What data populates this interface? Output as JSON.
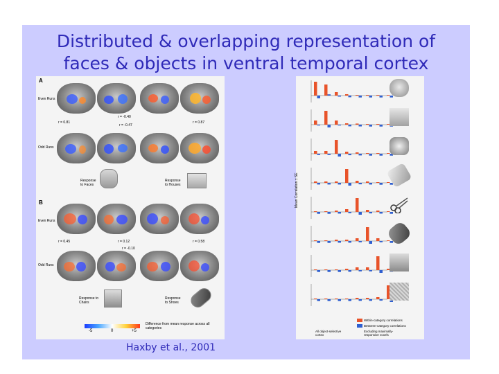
{
  "slide": {
    "title_line1": "Distributed & overlapping representation of",
    "title_line2": "faces & objects in ventral temporal cortex",
    "citation": "Haxby et al., 2001",
    "background_color": "#ccccff",
    "title_color": "#2f2ab8"
  },
  "left_figure": {
    "panel_a": "A",
    "panel_b": "B",
    "even_runs": "Even Runs",
    "odd_runs": "Odd Runs",
    "panel_a_r": {
      "left": "r = 0.81",
      "cross1": "r = -0.40",
      "cross2": "r = -0.47",
      "right": "r = 0.87"
    },
    "panel_b_r": {
      "left": "r = 0.45",
      "cross1": "r = 0.12",
      "cross2": "r = -0.10",
      "right": "r = 0.58"
    },
    "response_faces": "Response to Faces",
    "response_houses": "Response to Houses",
    "response_chairs": "Response to Chairs",
    "response_shoes": "Response to Shoes",
    "colorbar_ticks": [
      "-5",
      "0",
      "+5"
    ],
    "colorbar_caption": "Difference from mean response across all categories",
    "thumb_icons": [
      "face-icon",
      "house-icon",
      "chair-icon",
      "shoe-icon"
    ]
  },
  "right_figure": {
    "ylabel": "Mean Correlation ± SE",
    "row_icons": [
      "face-icon",
      "house-icon",
      "cat-icon",
      "bottle-icon",
      "scissors-icon",
      "shoe-icon",
      "chair-icon",
      "scrambled-icon"
    ],
    "legend": {
      "within": "Within-category correlations",
      "between": "Between-category correlations",
      "all": "All object-selective cortex",
      "excluding": "Excluding maximally-responsive voxels"
    },
    "colors": {
      "within": "#e8532a",
      "between": "#2f5fd0"
    }
  }
}
